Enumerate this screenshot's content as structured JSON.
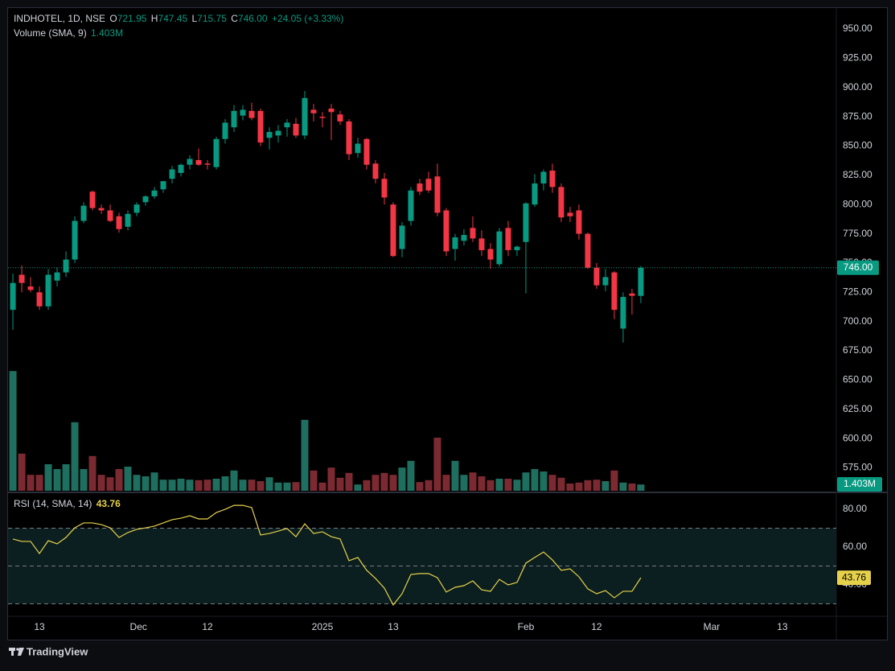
{
  "header": {
    "symbol": "INDHOTEL, 1D, NSE",
    "o_label": "O",
    "o": "721.95",
    "h_label": "H",
    "h": "747.45",
    "l_label": "L",
    "l": "715.75",
    "c_label": "C",
    "c": "746.00",
    "change": "+24.05 (+3.33%)",
    "volume_title": "Volume (SMA, 9)",
    "volume_value": "1.403M",
    "rsi_title": "RSI (14, SMA, 14)",
    "rsi_value": "43.76"
  },
  "price_label": "746.00",
  "volume_label": "1.403M",
  "rsi_label": "43.76",
  "footer": {
    "brand": "TradingView"
  },
  "chart_data": [
    {
      "type": "candlestick",
      "up_color": "#089981",
      "down_color": "#f23645",
      "open": [
        710,
        740,
        730,
        725,
        713,
        735,
        742,
        753,
        786,
        811,
        797,
        795,
        790,
        781,
        793,
        802,
        807,
        813,
        822,
        827,
        834,
        838,
        835,
        832,
        856,
        866,
        876,
        880,
        880,
        857,
        859,
        866,
        869,
        859,
        881,
        875,
        882,
        877,
        871,
        844,
        856,
        835,
        822,
        800,
        762,
        786,
        818,
        822,
        824,
        795,
        762,
        769,
        780,
        771,
        762,
        749,
        780,
        761,
        768,
        800,
        818,
        829,
        815,
        793,
        795,
        775,
        746,
        731,
        742,
        694,
        724,
        721.95
      ],
      "high": [
        741,
        748,
        738,
        730,
        745,
        746,
        760,
        790,
        802,
        812,
        800,
        800,
        793,
        795,
        802,
        808,
        815,
        820,
        833,
        835,
        842,
        848,
        838,
        858,
        873,
        885,
        885,
        887,
        882,
        866,
        868,
        873,
        874,
        897,
        886,
        879,
        886,
        880,
        873,
        857,
        857,
        838,
        827,
        802,
        785,
        815,
        822,
        828,
        835,
        797,
        775,
        779,
        790,
        778,
        767,
        780,
        786,
        765,
        802,
        826,
        830,
        835,
        818,
        798,
        800,
        776,
        750,
        745,
        743,
        725,
        728,
        747.45
      ],
      "low": [
        693,
        725,
        725,
        710,
        710,
        730,
        738,
        750,
        784,
        795,
        792,
        785,
        776,
        778,
        790,
        799,
        805,
        810,
        818,
        824,
        830,
        833,
        830,
        830,
        852,
        862,
        872,
        872,
        850,
        847,
        853,
        858,
        857,
        856,
        871,
        866,
        855,
        868,
        838,
        840,
        830,
        818,
        800,
        755,
        755,
        782,
        808,
        810,
        790,
        756,
        752,
        765,
        768,
        756,
        745,
        747,
        756,
        756,
        724,
        798,
        812,
        810,
        785,
        785,
        770,
        745,
        728,
        726,
        702,
        682,
        706,
        715.75
      ],
      "close": [
        733,
        733,
        727,
        713,
        740,
        742,
        753,
        786,
        799,
        797,
        795,
        786,
        779,
        792,
        800,
        807,
        812,
        820,
        830,
        834,
        839,
        834,
        834,
        856,
        870,
        880,
        881,
        874,
        853,
        862,
        863,
        870,
        859,
        891,
        878,
        874,
        879,
        871,
        843,
        852,
        834,
        822,
        806,
        756,
        782,
        812,
        811,
        812,
        793,
        760,
        772,
        774,
        771,
        761,
        753,
        777,
        761,
        764,
        801,
        818,
        828,
        815,
        789,
        790,
        775,
        746,
        731,
        738,
        710,
        721,
        722,
        746
      ],
      "ylim": [
        555.4,
        967.9
      ],
      "yticks": [
        {
          "value": 950,
          "label": "950.00"
        },
        {
          "value": 925,
          "label": "925.00"
        },
        {
          "value": 900,
          "label": "900.00"
        },
        {
          "value": 875,
          "label": "875.00"
        },
        {
          "value": 850,
          "label": "850.00"
        },
        {
          "value": 825,
          "label": "825.00"
        },
        {
          "value": 800,
          "label": "800.00"
        },
        {
          "value": 775,
          "label": "775.00"
        },
        {
          "value": 750,
          "label": "750.00"
        },
        {
          "value": 725,
          "label": "725.00"
        },
        {
          "value": 700,
          "label": "700.00"
        },
        {
          "value": 675,
          "label": "675.00"
        },
        {
          "value": 650,
          "label": "650.00"
        },
        {
          "value": 625,
          "label": "625.00"
        },
        {
          "value": 600,
          "label": "600.00"
        },
        {
          "value": 575,
          "label": "575.00"
        }
      ],
      "xlim": [
        -0.55,
        93.1
      ],
      "xticks": [
        {
          "value": 3,
          "label": "13"
        },
        {
          "value": 14.2,
          "label": "Dec"
        },
        {
          "value": 22,
          "label": "12"
        },
        {
          "value": 35,
          "label": "2025"
        },
        {
          "value": 43,
          "label": "13"
        },
        {
          "value": 58,
          "label": "Feb"
        },
        {
          "value": 66,
          "label": "12"
        },
        {
          "value": 79,
          "label": "Mar"
        },
        {
          "value": 87,
          "label": "13"
        }
      ]
    },
    {
      "type": "bar",
      "up_color": "#1f6f60",
      "down_color": "#7c2a31",
      "ylim": [
        0,
        100
      ],
      "values": [
        24.8,
        7.7,
        3.3,
        3.3,
        5.5,
        4.5,
        5.5,
        14.2,
        4.5,
        7.2,
        3.3,
        2.8,
        4.5,
        5.0,
        3.3,
        3.0,
        3.8,
        2.3,
        2.3,
        2.5,
        2.3,
        2.2,
        2.3,
        2.5,
        3.0,
        4.2,
        2.3,
        2.3,
        2.0,
        2.8,
        1.7,
        1.7,
        1.8,
        14.7,
        4.2,
        1.7,
        4.8,
        2.7,
        3.7,
        1.3,
        2.2,
        3.3,
        3.7,
        3.3,
        4.8,
        6.2,
        1.8,
        2.2,
        11.0,
        3.3,
        6.2,
        3.3,
        3.8,
        3.0,
        2.2,
        2.5,
        2.5,
        2.3,
        3.8,
        4.5,
        4.0,
        3.3,
        2.7,
        1.5,
        1.7,
        2.2,
        2.3,
        2.0,
        4.2,
        1.7,
        1.5,
        1.3
      ]
    },
    {
      "type": "line",
      "color": "#e6d24a",
      "band_color": "#0b1e20",
      "bands": [
        70,
        50,
        30
      ],
      "ylim": [
        23.8,
        88.1
      ],
      "yticks": [
        {
          "value": 80,
          "label": "80.00"
        },
        {
          "value": 60,
          "label": "60.00"
        },
        {
          "value": 40,
          "label": "40.00"
        }
      ],
      "values": [
        64.3,
        63.0,
        63.0,
        56.6,
        63.4,
        61.7,
        65.1,
        70.2,
        72.8,
        72.8,
        71.9,
        70.2,
        65.1,
        67.7,
        69.4,
        70.2,
        71.1,
        72.8,
        74.5,
        75.3,
        76.6,
        74.9,
        74.9,
        78.3,
        80.0,
        82.1,
        82.1,
        80.9,
        66.4,
        67.2,
        68.5,
        69.8,
        65.5,
        72.3,
        67.2,
        68.1,
        65.5,
        64.3,
        52.8,
        54.5,
        47.7,
        43.4,
        38.3,
        29.4,
        35.3,
        45.5,
        46.0,
        46.0,
        43.8,
        36.2,
        38.7,
        39.6,
        42.1,
        37.4,
        36.6,
        42.9,
        40.0,
        41.3,
        51.5,
        54.5,
        57.4,
        53.2,
        47.7,
        48.5,
        44.3,
        37.9,
        35.3,
        37.0,
        33.2,
        36.6,
        36.6,
        43.76
      ]
    }
  ]
}
